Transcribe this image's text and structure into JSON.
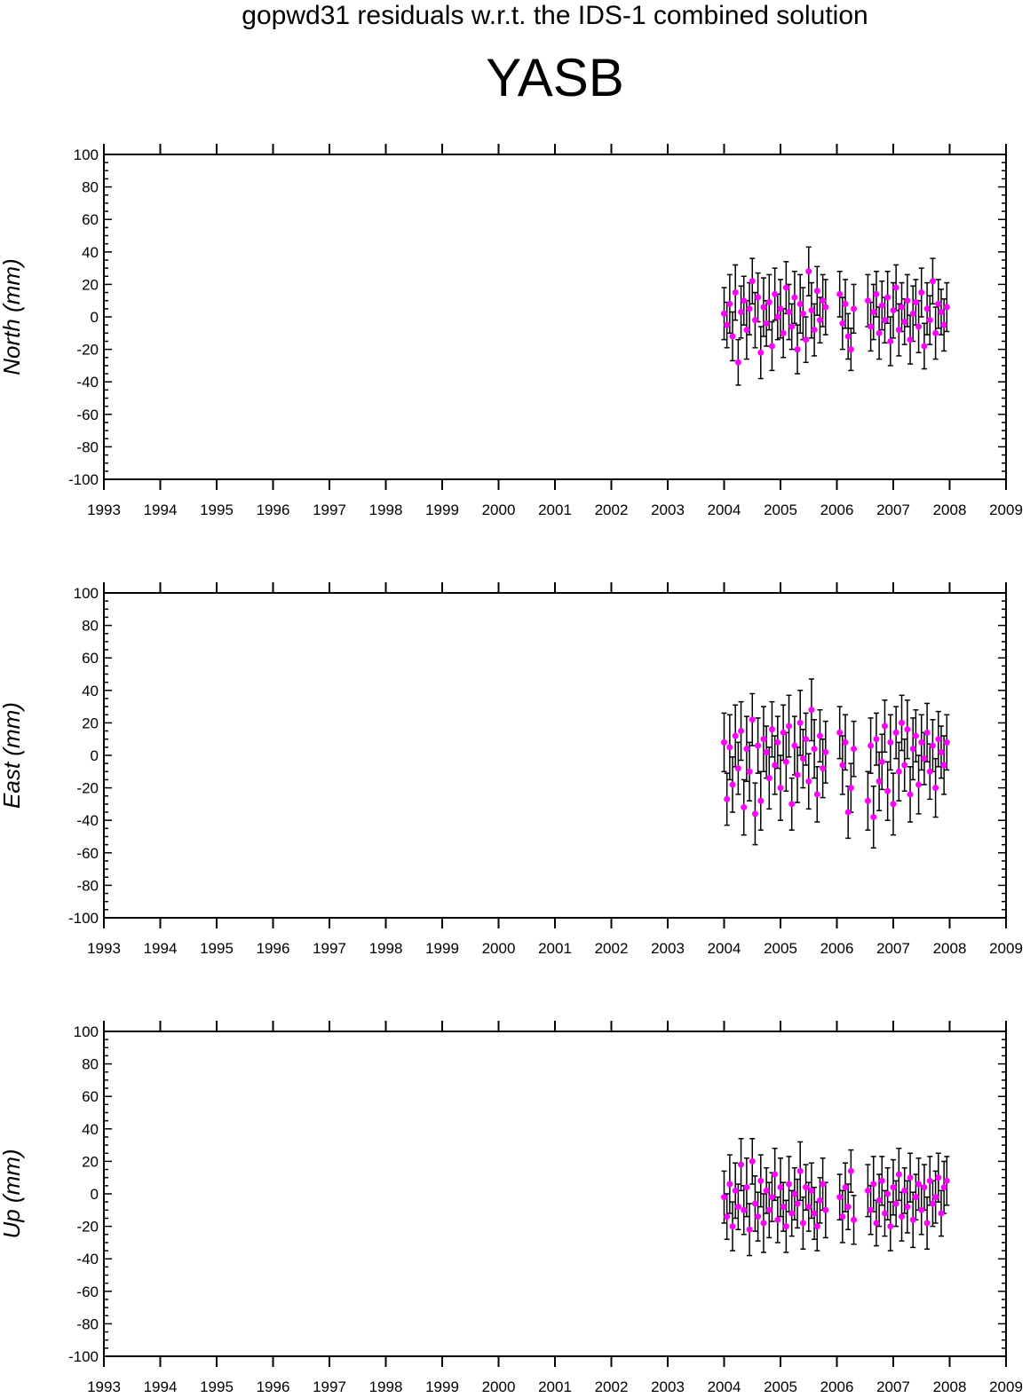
{
  "figure": {
    "subtitle": "gopwd31 residuals w.r.t. the IDS-1 combined solution",
    "title": "YASB"
  },
  "colors": {
    "point": "#ff00ff",
    "errorbar": "#000000",
    "axes": "#000000"
  },
  "chart_data": [
    {
      "type": "scatter",
      "ylabel": "North (mm)",
      "xlim": [
        1993,
        2009
      ],
      "ylim": [
        -100,
        100
      ],
      "xticks": [
        1993,
        1994,
        1995,
        1996,
        1997,
        1998,
        1999,
        2000,
        2001,
        2002,
        2003,
        2004,
        2005,
        2006,
        2007,
        2008,
        2009
      ],
      "yticks": [
        100,
        80,
        60,
        40,
        20,
        0,
        -20,
        -40,
        -60,
        -80,
        -100
      ],
      "grid": false,
      "error_bars": true,
      "series": [
        {
          "x": [
            2004.0,
            2004.05,
            2004.1,
            2004.15,
            2004.2,
            2004.25,
            2004.3,
            2004.35,
            2004.4,
            2004.45,
            2004.5,
            2004.55,
            2004.6,
            2004.65,
            2004.7,
            2004.75,
            2004.8,
            2004.85,
            2004.9,
            2004.95,
            2005.0,
            2005.05,
            2005.1,
            2005.15,
            2005.2,
            2005.25,
            2005.3,
            2005.35,
            2005.4,
            2005.45,
            2005.5,
            2005.55,
            2005.6,
            2005.65,
            2005.7,
            2005.75,
            2005.8,
            2006.05,
            2006.1,
            2006.15,
            2006.2,
            2006.25,
            2006.3,
            2006.55,
            2006.6,
            2006.65,
            2006.7,
            2006.75,
            2006.8,
            2006.85,
            2006.9,
            2006.95,
            2007.0,
            2007.05,
            2007.1,
            2007.15,
            2007.2,
            2007.25,
            2007.3,
            2007.35,
            2007.4,
            2007.45,
            2007.5,
            2007.55,
            2007.6,
            2007.65,
            2007.7,
            2007.75,
            2007.8,
            2007.85,
            2007.9,
            2007.95
          ],
          "y": [
            2,
            -5,
            8,
            -12,
            15,
            -28,
            3,
            10,
            -8,
            5,
            22,
            -2,
            12,
            -22,
            6,
            -4,
            9,
            -18,
            14,
            0,
            5,
            -10,
            18,
            3,
            -6,
            12,
            -20,
            8,
            2,
            -14,
            28,
            4,
            -8,
            16,
            -2,
            10,
            6,
            14,
            -4,
            8,
            -12,
            -20,
            5,
            10,
            -6,
            3,
            14,
            -10,
            7,
            -2,
            12,
            -15,
            4,
            18,
            -8,
            6,
            -3,
            10,
            -14,
            2,
            9,
            -6,
            15,
            -18,
            5,
            -2,
            22,
            -10,
            8,
            3,
            -5,
            6
          ],
          "err": [
            16,
            14,
            18,
            15,
            17,
            14,
            16,
            15,
            18,
            16,
            14,
            17,
            15,
            16,
            18,
            14,
            17,
            15,
            16,
            14,
            18,
            15,
            16,
            17,
            14,
            16,
            15,
            18,
            16,
            14,
            15,
            17,
            16,
            15,
            14,
            16,
            17,
            14,
            16,
            15,
            14,
            13,
            15,
            16,
            15,
            17,
            14,
            16,
            15,
            14,
            16,
            15,
            17,
            14,
            16,
            15,
            14,
            16,
            15,
            17,
            14,
            16,
            15,
            14,
            16,
            15,
            14,
            16,
            15,
            14,
            16,
            15
          ]
        }
      ]
    },
    {
      "type": "scatter",
      "ylabel": "East (mm)",
      "xlim": [
        1993,
        2009
      ],
      "ylim": [
        -100,
        100
      ],
      "xticks": [
        1993,
        1994,
        1995,
        1996,
        1997,
        1998,
        1999,
        2000,
        2001,
        2002,
        2003,
        2004,
        2005,
        2006,
        2007,
        2008,
        2009
      ],
      "yticks": [
        100,
        80,
        60,
        40,
        20,
        0,
        -20,
        -40,
        -60,
        -80,
        -100
      ],
      "grid": false,
      "error_bars": true,
      "series": [
        {
          "x": [
            2004.0,
            2004.05,
            2004.1,
            2004.15,
            2004.2,
            2004.25,
            2004.3,
            2004.35,
            2004.4,
            2004.45,
            2004.5,
            2004.55,
            2004.6,
            2004.65,
            2004.7,
            2004.75,
            2004.8,
            2004.85,
            2004.9,
            2004.95,
            2005.0,
            2005.05,
            2005.1,
            2005.15,
            2005.2,
            2005.25,
            2005.3,
            2005.35,
            2005.4,
            2005.45,
            2005.5,
            2005.55,
            2005.6,
            2005.65,
            2005.7,
            2005.75,
            2005.8,
            2006.05,
            2006.1,
            2006.15,
            2006.2,
            2006.25,
            2006.3,
            2006.55,
            2006.6,
            2006.65,
            2006.7,
            2006.75,
            2006.8,
            2006.85,
            2006.9,
            2006.95,
            2007.0,
            2007.05,
            2007.1,
            2007.15,
            2007.2,
            2007.25,
            2007.3,
            2007.35,
            2007.4,
            2007.45,
            2007.5,
            2007.55,
            2007.6,
            2007.65,
            2007.7,
            2007.75,
            2007.8,
            2007.85,
            2007.9,
            2007.95
          ],
          "y": [
            8,
            -27,
            5,
            -18,
            12,
            -8,
            15,
            -32,
            4,
            -10,
            22,
            -36,
            6,
            -28,
            10,
            2,
            -14,
            16,
            -6,
            8,
            -20,
            14,
            -4,
            18,
            -30,
            6,
            -12,
            20,
            -2,
            10,
            -16,
            28,
            4,
            -24,
            12,
            -8,
            2,
            14,
            -6,
            8,
            -35,
            -20,
            4,
            -28,
            6,
            -38,
            10,
            -16,
            -4,
            18,
            -22,
            8,
            -30,
            14,
            -10,
            20,
            -6,
            16,
            -24,
            4,
            12,
            -18,
            8,
            -2,
            14,
            -10,
            6,
            -20,
            10,
            2,
            -6,
            8
          ],
          "err": [
            18,
            16,
            20,
            17,
            19,
            16,
            18,
            17,
            20,
            18,
            16,
            19,
            17,
            18,
            20,
            16,
            19,
            17,
            18,
            16,
            20,
            17,
            18,
            19,
            16,
            18,
            17,
            20,
            18,
            16,
            17,
            19,
            18,
            17,
            16,
            18,
            19,
            16,
            18,
            17,
            16,
            15,
            17,
            18,
            17,
            19,
            16,
            18,
            17,
            16,
            18,
            17,
            19,
            16,
            18,
            17,
            16,
            18,
            17,
            19,
            16,
            18,
            17,
            16,
            18,
            17,
            16,
            18,
            17,
            16,
            18,
            17
          ]
        }
      ]
    },
    {
      "type": "scatter",
      "ylabel": "Up (mm)",
      "xlim": [
        1993,
        2009
      ],
      "ylim": [
        -100,
        100
      ],
      "xticks": [
        1993,
        1994,
        1995,
        1996,
        1997,
        1998,
        1999,
        2000,
        2001,
        2002,
        2003,
        2004,
        2005,
        2006,
        2007,
        2008,
        2009
      ],
      "yticks": [
        100,
        80,
        60,
        40,
        20,
        0,
        -20,
        -40,
        -60,
        -80,
        -100
      ],
      "grid": false,
      "error_bars": true,
      "series": [
        {
          "x": [
            2004.0,
            2004.05,
            2004.1,
            2004.15,
            2004.2,
            2004.25,
            2004.3,
            2004.35,
            2004.4,
            2004.45,
            2004.5,
            2004.55,
            2004.6,
            2004.65,
            2004.7,
            2004.75,
            2004.8,
            2004.85,
            2004.9,
            2004.95,
            2005.0,
            2005.05,
            2005.1,
            2005.15,
            2005.2,
            2005.25,
            2005.3,
            2005.35,
            2005.4,
            2005.45,
            2005.5,
            2005.55,
            2005.6,
            2005.65,
            2005.7,
            2005.75,
            2005.8,
            2006.05,
            2006.1,
            2006.15,
            2006.2,
            2006.25,
            2006.3,
            2006.55,
            2006.6,
            2006.65,
            2006.7,
            2006.75,
            2006.8,
            2006.85,
            2006.9,
            2006.95,
            2007.0,
            2007.05,
            2007.1,
            2007.15,
            2007.2,
            2007.25,
            2007.3,
            2007.35,
            2007.4,
            2007.45,
            2007.5,
            2007.55,
            2007.6,
            2007.65,
            2007.7,
            2007.75,
            2007.8,
            2007.85,
            2007.9,
            2007.95
          ],
          "y": [
            -2,
            -14,
            6,
            -20,
            2,
            -8,
            18,
            -10,
            4,
            -22,
            20,
            -6,
            -14,
            8,
            -18,
            2,
            -10,
            -2,
            12,
            -16,
            4,
            -8,
            -20,
            6,
            -12,
            0,
            -6,
            14,
            -18,
            4,
            -8,
            2,
            -12,
            -20,
            -4,
            6,
            -10,
            -2,
            -14,
            4,
            -8,
            14,
            -16,
            2,
            -10,
            6,
            -18,
            -4,
            8,
            -12,
            0,
            -20,
            4,
            -6,
            12,
            -14,
            2,
            -8,
            10,
            -16,
            -2,
            6,
            -10,
            4,
            -18,
            8,
            -6,
            -2,
            10,
            -12,
            4,
            8
          ],
          "err": [
            16,
            14,
            18,
            15,
            17,
            14,
            16,
            15,
            18,
            16,
            14,
            17,
            15,
            16,
            18,
            14,
            17,
            15,
            16,
            14,
            18,
            15,
            16,
            17,
            14,
            16,
            15,
            18,
            16,
            14,
            15,
            17,
            16,
            15,
            14,
            16,
            17,
            14,
            16,
            15,
            14,
            13,
            15,
            16,
            15,
            17,
            14,
            16,
            15,
            14,
            16,
            15,
            17,
            14,
            16,
            15,
            14,
            16,
            15,
            17,
            14,
            16,
            15,
            14,
            16,
            15,
            14,
            16,
            15,
            14,
            16,
            15
          ]
        }
      ]
    }
  ]
}
